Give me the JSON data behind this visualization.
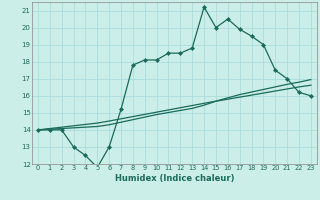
{
  "xlabel": "Humidex (Indice chaleur)",
  "background_color": "#cceee8",
  "grid_color": "#aadddd",
  "line_color": "#1a6b5a",
  "xlim": [
    -0.5,
    23.5
  ],
  "ylim": [
    12,
    21.5
  ],
  "yticks": [
    12,
    13,
    14,
    15,
    16,
    17,
    18,
    19,
    20,
    21
  ],
  "xticks": [
    0,
    1,
    2,
    3,
    4,
    5,
    6,
    7,
    8,
    9,
    10,
    11,
    12,
    13,
    14,
    15,
    16,
    17,
    18,
    19,
    20,
    21,
    22,
    23
  ],
  "x": [
    0,
    1,
    2,
    3,
    4,
    5,
    6,
    7,
    8,
    9,
    10,
    11,
    12,
    13,
    14,
    15,
    16,
    17,
    18,
    19,
    20,
    21,
    22,
    23
  ],
  "y_curve": [
    14,
    14,
    14,
    13,
    12.5,
    11.8,
    13,
    15.2,
    17.8,
    18.1,
    18.1,
    18.5,
    18.5,
    18.8,
    21.2,
    20.0,
    20.5,
    19.9,
    19.5,
    19.0,
    17.5,
    17.0,
    16.2,
    16.0
  ],
  "y_line1": [
    14.0,
    14.08,
    14.16,
    14.24,
    14.32,
    14.4,
    14.52,
    14.65,
    14.78,
    14.91,
    15.04,
    15.17,
    15.3,
    15.43,
    15.56,
    15.69,
    15.88,
    16.07,
    16.22,
    16.37,
    16.52,
    16.67,
    16.8,
    16.95
  ],
  "y_line2": [
    14.0,
    14.04,
    14.08,
    14.12,
    14.16,
    14.2,
    14.3,
    14.45,
    14.6,
    14.75,
    14.9,
    15.02,
    15.14,
    15.26,
    15.45,
    15.68,
    15.8,
    15.92,
    16.04,
    16.16,
    16.28,
    16.4,
    16.52,
    16.62
  ]
}
